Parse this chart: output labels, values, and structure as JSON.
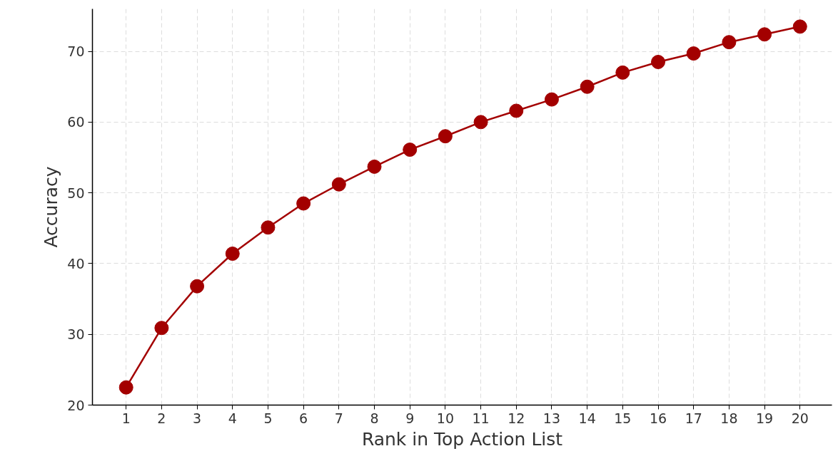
{
  "chart_data": {
    "type": "line",
    "xlabel": "Rank in Top Action List",
    "ylabel": "Accuracy",
    "x": [
      1,
      2,
      3,
      4,
      5,
      6,
      7,
      8,
      9,
      10,
      11,
      12,
      13,
      14,
      15,
      16,
      17,
      18,
      19,
      20
    ],
    "series": [
      {
        "color": "#a30000",
        "values": [
          22.5,
          30.9,
          36.8,
          41.4,
          45.1,
          48.5,
          51.2,
          53.7,
          56.1,
          58.0,
          60.0,
          61.6,
          63.2,
          65.0,
          67.0,
          68.5,
          69.7,
          71.3,
          72.4,
          73.5
        ]
      }
    ],
    "xlim": [
      0.05,
      20.9
    ],
    "ylim": [
      20,
      76
    ],
    "xticks": [
      1,
      2,
      3,
      4,
      5,
      6,
      7,
      8,
      9,
      10,
      11,
      12,
      13,
      14,
      15,
      16,
      17,
      18,
      19,
      20
    ],
    "yticks": [
      20,
      30,
      40,
      50,
      60,
      70
    ],
    "grid": true,
    "marker": "circle",
    "line_style": "solid"
  }
}
